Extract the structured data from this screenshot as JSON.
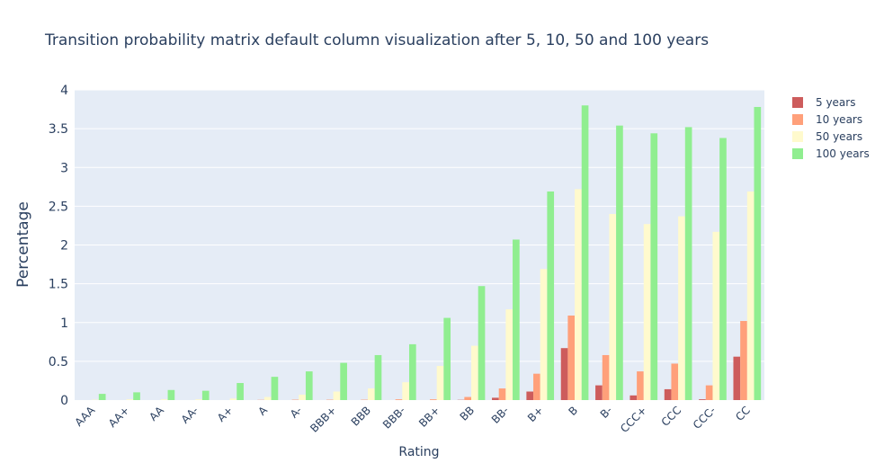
{
  "chart_data": {
    "type": "bar",
    "title": "Transition probability matrix default column visualization after 5, 10, 50 and 100 years",
    "xlabel": "Rating",
    "ylabel": "Percentage",
    "ylim": [
      0,
      4
    ],
    "yticks": [
      "0",
      "0.5",
      "1",
      "1.5",
      "2",
      "2.5",
      "3",
      "3.5",
      "4"
    ],
    "grid": true,
    "legend_position": "top-right",
    "categories": [
      "AAA",
      "AA+",
      "AA",
      "AA-",
      "A+",
      "A",
      "A-",
      "BBB+",
      "BBB",
      "BBB-",
      "BB+",
      "BB",
      "BB-",
      "B+",
      "B",
      "B-",
      "CCC+",
      "CCC",
      "CCC-",
      "CC"
    ],
    "series": [
      {
        "name": "5 years",
        "color": "#cd5c5c",
        "values": [
          0,
          0,
          0,
          0,
          0,
          0,
          0,
          0,
          0,
          0,
          0,
          0.003,
          0.03,
          0.11,
          0.67,
          0.19,
          0.06,
          0.14,
          0.01,
          0.56
        ]
      },
      {
        "name": "10 years",
        "color": "#ffa07a",
        "values": [
          0,
          0,
          0,
          0,
          0,
          0.003,
          0.005,
          0.005,
          0.005,
          0.01,
          0.01,
          0.04,
          0.15,
          0.34,
          1.09,
          0.58,
          0.37,
          0.47,
          0.19,
          1.02
        ]
      },
      {
        "name": "50 years",
        "color": "#fffacd",
        "values": [
          0.005,
          0.01,
          0.01,
          0.01,
          0.02,
          0.04,
          0.07,
          0.11,
          0.15,
          0.23,
          0.44,
          0.7,
          1.17,
          1.69,
          2.72,
          2.4,
          2.27,
          2.37,
          2.17,
          2.69
        ]
      },
      {
        "name": "100 years",
        "color": "#90ee90",
        "values": [
          0.08,
          0.1,
          0.13,
          0.12,
          0.22,
          0.3,
          0.37,
          0.48,
          0.58,
          0.72,
          1.06,
          1.47,
          2.07,
          2.69,
          3.8,
          3.54,
          3.44,
          3.52,
          3.38,
          3.78
        ]
      }
    ]
  }
}
